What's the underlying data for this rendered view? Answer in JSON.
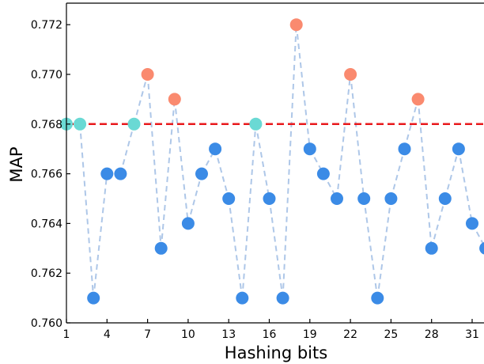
{
  "chart_data": {
    "type": "scatter",
    "xlabel": "Hashing bits",
    "ylabel": "MAP",
    "xlim": [
      1,
      32
    ],
    "ylim": [
      0.76,
      0.773
    ],
    "x_ticks": [
      1,
      4,
      7,
      10,
      13,
      16,
      19,
      22,
      25,
      28,
      31
    ],
    "y_ticks": [
      0.76,
      0.762,
      0.764,
      0.766,
      0.768,
      0.77,
      0.772
    ],
    "y_tick_labels": [
      "0.760",
      "0.762",
      "0.764",
      "0.766",
      "0.768",
      "0.770",
      "0.772"
    ],
    "reference_line": {
      "y": 0.768,
      "color": "#e8191c",
      "style": "dashed"
    },
    "connector_color": "#aec7e8",
    "colors": {
      "below": "#3b8be6",
      "equal": "#6ad9d4",
      "above": "#fa8a6f"
    },
    "points": [
      {
        "x": 1,
        "y": 0.768,
        "group": "equal"
      },
      {
        "x": 2,
        "y": 0.768,
        "group": "equal"
      },
      {
        "x": 3,
        "y": 0.761,
        "group": "below"
      },
      {
        "x": 4,
        "y": 0.766,
        "group": "below"
      },
      {
        "x": 5,
        "y": 0.766,
        "group": "below"
      },
      {
        "x": 6,
        "y": 0.768,
        "group": "equal"
      },
      {
        "x": 7,
        "y": 0.77,
        "group": "above"
      },
      {
        "x": 8,
        "y": 0.763,
        "group": "below"
      },
      {
        "x": 9,
        "y": 0.769,
        "group": "above"
      },
      {
        "x": 10,
        "y": 0.764,
        "group": "below"
      },
      {
        "x": 11,
        "y": 0.766,
        "group": "below"
      },
      {
        "x": 12,
        "y": 0.767,
        "group": "below"
      },
      {
        "x": 13,
        "y": 0.765,
        "group": "below"
      },
      {
        "x": 14,
        "y": 0.761,
        "group": "below"
      },
      {
        "x": 15,
        "y": 0.768,
        "group": "equal"
      },
      {
        "x": 16,
        "y": 0.765,
        "group": "below"
      },
      {
        "x": 17,
        "y": 0.761,
        "group": "below"
      },
      {
        "x": 18,
        "y": 0.772,
        "group": "above"
      },
      {
        "x": 19,
        "y": 0.767,
        "group": "below"
      },
      {
        "x": 20,
        "y": 0.766,
        "group": "below"
      },
      {
        "x": 21,
        "y": 0.765,
        "group": "below"
      },
      {
        "x": 22,
        "y": 0.77,
        "group": "above"
      },
      {
        "x": 23,
        "y": 0.765,
        "group": "below"
      },
      {
        "x": 24,
        "y": 0.761,
        "group": "below"
      },
      {
        "x": 25,
        "y": 0.765,
        "group": "below"
      },
      {
        "x": 26,
        "y": 0.767,
        "group": "below"
      },
      {
        "x": 27,
        "y": 0.769,
        "group": "above"
      },
      {
        "x": 28,
        "y": 0.763,
        "group": "below"
      },
      {
        "x": 29,
        "y": 0.765,
        "group": "below"
      },
      {
        "x": 30,
        "y": 0.767,
        "group": "below"
      },
      {
        "x": 31,
        "y": 0.764,
        "group": "below"
      },
      {
        "x": 32,
        "y": 0.763,
        "group": "below"
      }
    ]
  }
}
